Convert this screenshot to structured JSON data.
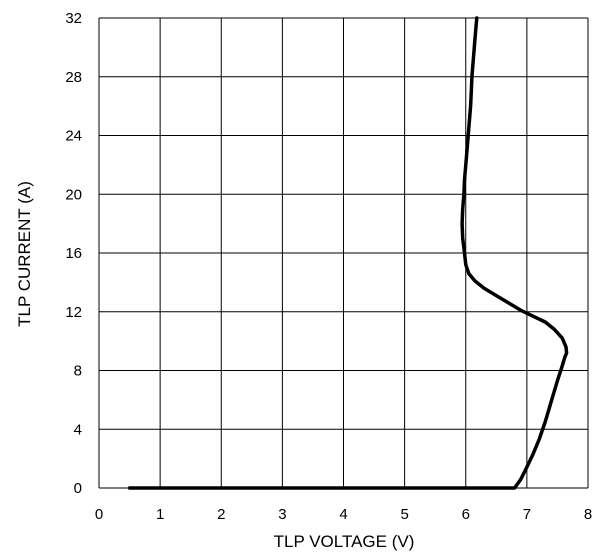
{
  "chart_data": {
    "type": "line",
    "title": "",
    "xlabel": "TLP VOLTAGE (V)",
    "ylabel": "TLP CURRENT (A)",
    "xlim": [
      0,
      8
    ],
    "ylim": [
      0,
      32
    ],
    "x_ticks": [
      "0",
      "1",
      "2",
      "3",
      "4",
      "5",
      "6",
      "7",
      "8"
    ],
    "y_ticks": [
      "0",
      "4",
      "8",
      "12",
      "16",
      "20",
      "24",
      "28",
      "32"
    ],
    "grid": true,
    "legend": "none",
    "series": [
      {
        "color": "#000000",
        "points": [
          [
            0.5,
            0.0
          ],
          [
            2.0,
            0.0
          ],
          [
            4.0,
            0.0
          ],
          [
            6.0,
            0.0
          ],
          [
            6.5,
            0.0
          ],
          [
            6.8,
            0.0
          ],
          [
            6.85,
            0.3
          ],
          [
            6.9,
            0.6
          ],
          [
            6.95,
            1.0
          ],
          [
            7.02,
            1.6
          ],
          [
            7.1,
            2.3
          ],
          [
            7.2,
            3.3
          ],
          [
            7.3,
            4.5
          ],
          [
            7.4,
            5.9
          ],
          [
            7.5,
            7.3
          ],
          [
            7.57,
            8.2
          ],
          [
            7.62,
            8.9
          ],
          [
            7.65,
            9.2
          ],
          [
            7.64,
            9.6
          ],
          [
            7.58,
            10.2
          ],
          [
            7.45,
            10.8
          ],
          [
            7.3,
            11.3
          ],
          [
            7.1,
            11.7
          ],
          [
            6.9,
            12.1
          ],
          [
            6.7,
            12.6
          ],
          [
            6.5,
            13.1
          ],
          [
            6.3,
            13.6
          ],
          [
            6.15,
            14.1
          ],
          [
            6.05,
            14.6
          ],
          [
            6.0,
            15.2
          ],
          [
            5.98,
            16.0
          ],
          [
            5.95,
            17.0
          ],
          [
            5.94,
            18.0
          ],
          [
            5.95,
            19.0
          ],
          [
            5.97,
            20.0
          ],
          [
            5.98,
            21.0
          ],
          [
            6.0,
            22.0
          ],
          [
            6.02,
            23.0
          ],
          [
            6.04,
            24.0
          ],
          [
            6.06,
            25.0
          ],
          [
            6.08,
            26.0
          ],
          [
            6.09,
            27.0
          ],
          [
            6.1,
            28.0
          ],
          [
            6.12,
            29.0
          ],
          [
            6.14,
            30.0
          ],
          [
            6.16,
            31.0
          ],
          [
            6.18,
            32.0
          ]
        ]
      }
    ]
  }
}
